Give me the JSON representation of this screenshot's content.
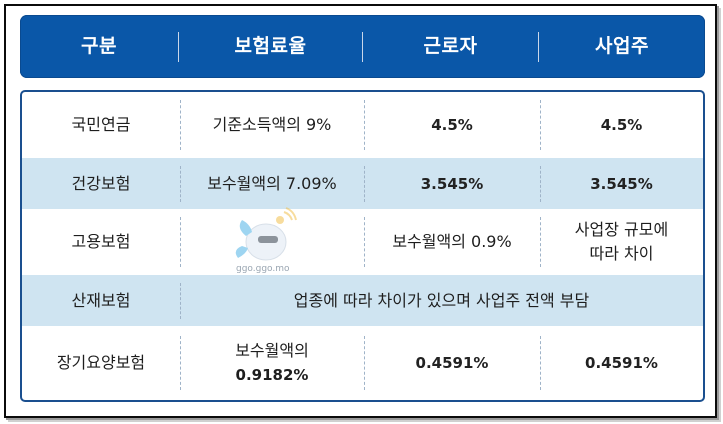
{
  "header": {
    "col1": "구분",
    "col2": "보험료율",
    "col3": "근로자",
    "col4": "사업주"
  },
  "rows": [
    {
      "name": "국민연금",
      "rate": "기준소득액의 9%",
      "worker": "4.5%",
      "employer": "4.5%"
    },
    {
      "name": "건강보험",
      "rate": "보수월액의 7.09%",
      "worker": "3.545%",
      "employer": "3.545%"
    },
    {
      "name": "고용보험",
      "rate": "",
      "worker": "보수월액의 0.9%",
      "employer_line1": "사업장 규모에",
      "employer_line2": "따라 차이"
    },
    {
      "name": "산재보험",
      "merged": "업종에 따라 차이가 있으며 사업주 전액 부담"
    },
    {
      "name": "장기요양보험",
      "rate_line1": "보수월액의",
      "rate_line2": "0.9182%",
      "worker": "0.4591%",
      "employer": "0.4591%"
    }
  ],
  "watermark": {
    "text": "ggo.ggo.mo",
    "icon": "mascot-icon"
  },
  "colors": {
    "header_bg": "#0a57a8",
    "row_shade": "#cfe4f1",
    "border": "#1a4f8f"
  }
}
